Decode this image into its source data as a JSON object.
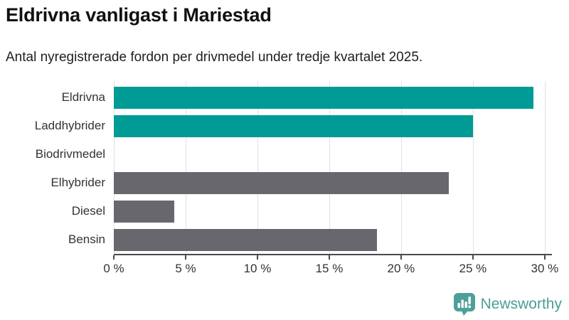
{
  "header": {
    "title": "Eldrivna vanligast i Mariestad",
    "subtitle": "Antal nyregistrerade fordon per drivmedel under tredje kvartalet 2025."
  },
  "chart_data": {
    "type": "bar",
    "orientation": "horizontal",
    "title": "Eldrivna vanligast i Mariestad",
    "subtitle": "Antal nyregistrerade fordon per drivmedel under tredje kvartalet 2025.",
    "categories": [
      "Eldrivna",
      "Laddhybrider",
      "Biodrivmedel",
      "Elhybrider",
      "Diesel",
      "Bensin"
    ],
    "values": [
      29.2,
      25.0,
      0,
      23.3,
      4.2,
      18.3
    ],
    "unit": "%",
    "bar_colors": [
      "#009b94",
      "#009b94",
      "#68676d",
      "#68676d",
      "#68676d",
      "#68676d"
    ],
    "x_ticks": [
      0,
      5,
      10,
      15,
      20,
      25,
      30
    ],
    "x_tick_labels": [
      "0 %",
      "5 %",
      "10 %",
      "15 %",
      "20 %",
      "25 %",
      "30 %"
    ],
    "xlim": [
      0,
      30.5
    ],
    "grid": "vertical",
    "legend": "none"
  },
  "colors": {
    "highlight": "#009b94",
    "muted": "#68676d",
    "grid": "#e2e2e2",
    "axis": "#4a4a4a",
    "brand": "#4a9e96"
  },
  "footer": {
    "brand": "Newsworthy",
    "logo_icon": "bar-chart-speech-bubble-icon"
  }
}
